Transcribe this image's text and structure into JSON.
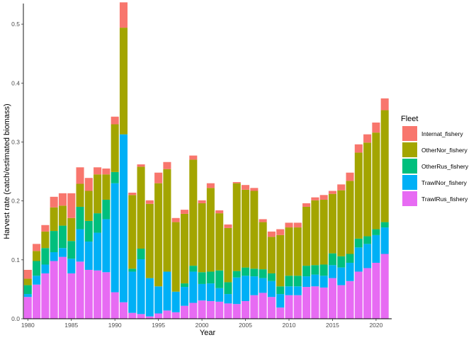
{
  "chart_data": {
    "type": "bar",
    "stacked": true,
    "xlabel": "Year",
    "ylabel": "Harvest rate (catch/estimated biomass)",
    "ylim": [
      0,
      0.535
    ],
    "y_ticks": [
      0.0,
      0.1,
      0.2,
      0.3,
      0.4,
      0.5
    ],
    "y_tick_labels": [
      "0.0",
      "0.1",
      "0.2",
      "0.3",
      "0.4",
      "0.5"
    ],
    "x_ticks": [
      1980,
      1985,
      1990,
      1995,
      2000,
      2005,
      2010,
      2015,
      2020
    ],
    "x_tick_labels": [
      "1980",
      "1985",
      "1990",
      "1995",
      "2000",
      "2005",
      "2010",
      "2015",
      "2020"
    ],
    "grid": false,
    "legend_position": "right",
    "legend_title": "Fleet",
    "stack_order": [
      "TrawlRus_fishery",
      "TrawlNor_fishery",
      "OtherRus_fishery",
      "OtherNor_fishery",
      "Internat_fishery"
    ],
    "categories": [
      1980,
      1981,
      1982,
      1983,
      1984,
      1985,
      1986,
      1987,
      1988,
      1989,
      1990,
      1991,
      1992,
      1993,
      1994,
      1995,
      1996,
      1997,
      1998,
      1999,
      2000,
      2001,
      2002,
      2003,
      2004,
      2005,
      2006,
      2007,
      2008,
      2009,
      2010,
      2011,
      2012,
      2013,
      2014,
      2015,
      2016,
      2017,
      2018,
      2019,
      2020,
      2021
    ],
    "series": [
      {
        "name": "Internat_fishery",
        "color": "#F8766D",
        "values": [
          0.015,
          0.012,
          0.011,
          0.018,
          0.021,
          0.042,
          0.028,
          0.022,
          0.012,
          0.01,
          0.013,
          0.043,
          0.004,
          0.004,
          0.006,
          0.018,
          0.012,
          0.007,
          0.007,
          0.007,
          0.005,
          0.008,
          0.005,
          0.006,
          0.002,
          0.008,
          0.005,
          0.005,
          0.009,
          0.01,
          0.008,
          0.008,
          0.006,
          0.005,
          0.008,
          0.005,
          0.01,
          0.014,
          0.014,
          0.014,
          0.017,
          0.02
        ]
      },
      {
        "name": "OtherNor_fishery",
        "color": "#A3A500",
        "values": [
          0.011,
          0.017,
          0.028,
          0.04,
          0.034,
          0.039,
          0.039,
          0.051,
          0.066,
          0.043,
          0.081,
          0.181,
          0.125,
          0.139,
          0.126,
          0.175,
          0.174,
          0.118,
          0.118,
          0.18,
          0.117,
          0.142,
          0.097,
          0.092,
          0.149,
          0.132,
          0.132,
          0.08,
          0.062,
          0.087,
          0.082,
          0.082,
          0.1,
          0.11,
          0.11,
          0.101,
          0.112,
          0.124,
          0.146,
          0.159,
          0.164,
          0.19
        ]
      },
      {
        "name": "OtherRus_fishery",
        "color": "#00BF7D",
        "values": [
          0.015,
          0.025,
          0.028,
          0.036,
          0.038,
          0.03,
          0.038,
          0.035,
          0.033,
          0.033,
          0.019,
          0.0,
          0.005,
          0.018,
          0.0,
          0.0,
          0.0,
          0.0,
          0.006,
          0.01,
          0.02,
          0.02,
          0.03,
          0.02,
          0.011,
          0.014,
          0.013,
          0.015,
          0.013,
          0.013,
          0.018,
          0.018,
          0.018,
          0.016,
          0.019,
          0.02,
          0.019,
          0.015,
          0.015,
          0.013,
          0.01,
          0.009
        ]
      },
      {
        "name": "TrawlNor_fishery",
        "color": "#00B0F6",
        "values": [
          0.005,
          0.015,
          0.015,
          0.015,
          0.015,
          0.025,
          0.055,
          0.048,
          0.064,
          0.09,
          0.185,
          0.285,
          0.07,
          0.093,
          0.065,
          0.046,
          0.066,
          0.035,
          0.032,
          0.053,
          0.028,
          0.03,
          0.023,
          0.016,
          0.045,
          0.043,
          0.032,
          0.025,
          0.027,
          0.023,
          0.015,
          0.015,
          0.018,
          0.02,
          0.02,
          0.022,
          0.03,
          0.031,
          0.041,
          0.041,
          0.047,
          0.045
        ]
      },
      {
        "name": "TrawlRus_fishery",
        "color": "#E76BF3",
        "values": [
          0.037,
          0.058,
          0.077,
          0.098,
          0.105,
          0.077,
          0.097,
          0.083,
          0.082,
          0.079,
          0.045,
          0.028,
          0.01,
          0.008,
          0.004,
          0.009,
          0.014,
          0.011,
          0.022,
          0.027,
          0.031,
          0.03,
          0.029,
          0.026,
          0.025,
          0.03,
          0.04,
          0.044,
          0.037,
          0.019,
          0.04,
          0.04,
          0.054,
          0.055,
          0.053,
          0.069,
          0.057,
          0.064,
          0.08,
          0.086,
          0.095,
          0.11
        ]
      }
    ]
  }
}
